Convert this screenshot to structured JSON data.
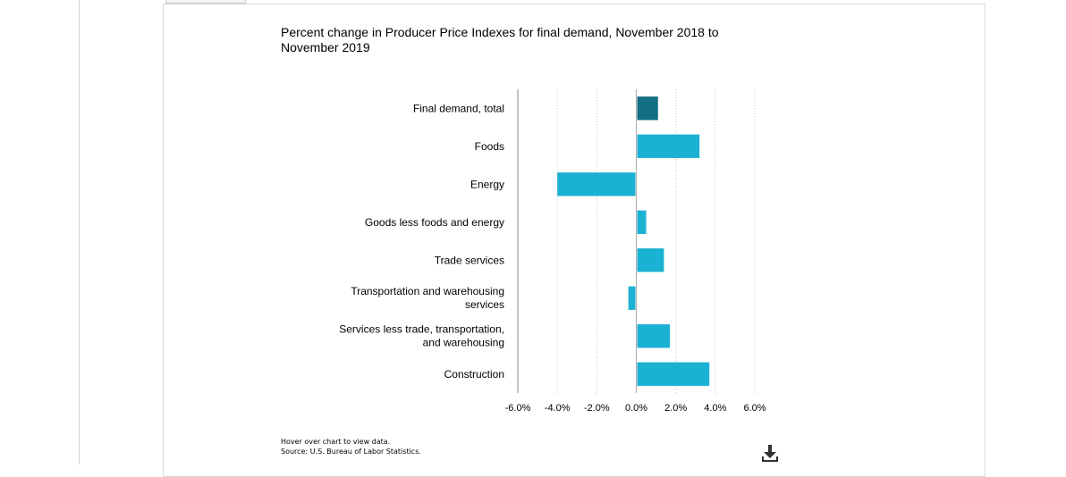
{
  "chart_data": {
    "type": "bar",
    "orientation": "horizontal",
    "title": "Percent change in Producer Price Indexes for final demand, November 2018 to November 2019",
    "categories": [
      "Final demand, total",
      "Foods",
      "Energy",
      "Goods less foods and energy",
      "Trade services",
      "Transportation and warehousing services",
      "Services less trade, transportation, and warehousing",
      "Construction"
    ],
    "values": [
      1.1,
      3.2,
      -4.0,
      0.5,
      1.4,
      -0.4,
      1.7,
      3.7
    ],
    "highlight_index": 0,
    "colors": {
      "highlight": "#136f84",
      "bar": "#1ab1d3",
      "grid": "#cccccc",
      "axis": "#888888"
    },
    "xlim": [
      -6,
      6
    ],
    "xticks": [
      -6,
      -4,
      -2,
      0,
      2,
      4,
      6
    ],
    "xtick_labels": [
      "-6.0%",
      "-4.0%",
      "-2.0%",
      "0.0%",
      "2.0%",
      "4.0%",
      "6.0%"
    ],
    "grid": true
  },
  "footer": {
    "hover_note": "Hover over chart to view data.",
    "source": "Source: U.S. Bureau of Labor Statistics."
  },
  "icons": {
    "download": "download-icon"
  }
}
